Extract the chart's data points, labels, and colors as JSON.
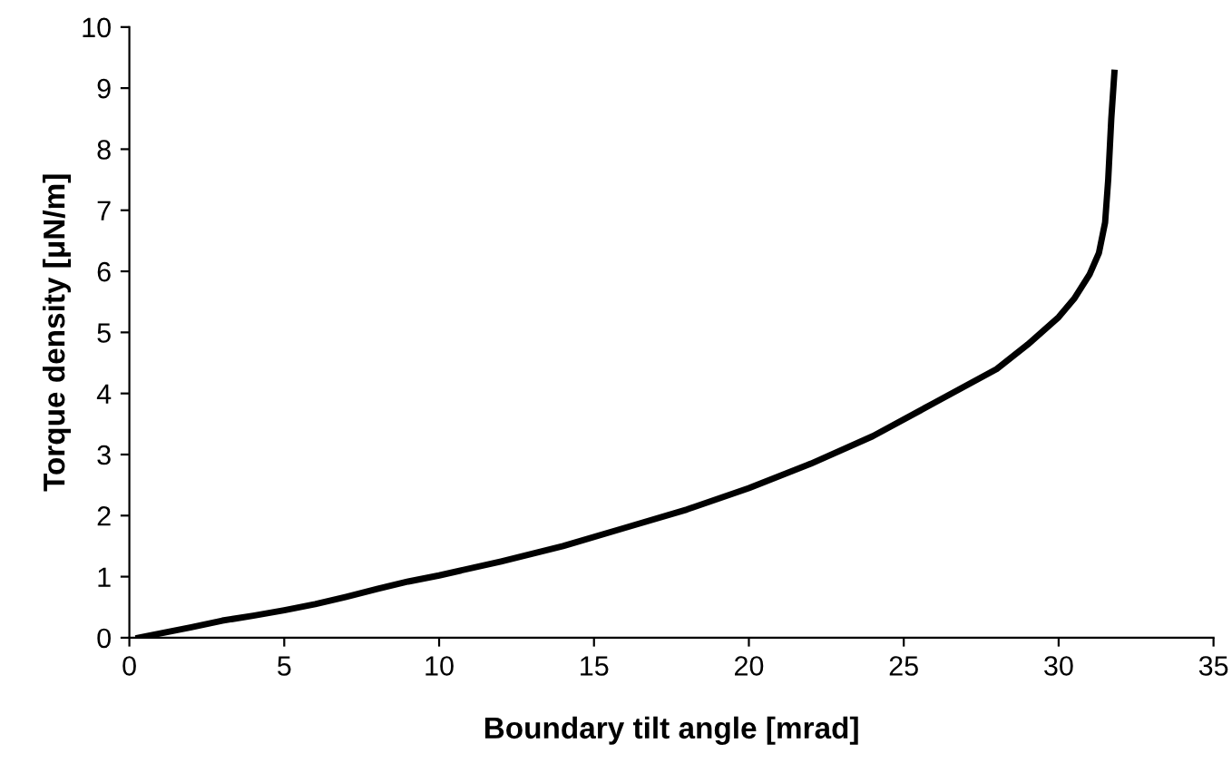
{
  "chart_data": {
    "type": "line",
    "xlabel": "Boundary tilt angle [mrad]",
    "ylabel": "Torque density [μN/m]",
    "series": [
      {
        "color": "#000000",
        "x": [
          0.3,
          1,
          2,
          3,
          4,
          5,
          6,
          7,
          8,
          9,
          10,
          12,
          14,
          16,
          18,
          20,
          22,
          24,
          26,
          28,
          29,
          30,
          30.5,
          31,
          31.3,
          31.5,
          31.6,
          31.7,
          31.8
        ],
        "values": [
          0,
          0.07,
          0.17,
          0.28,
          0.36,
          0.45,
          0.55,
          0.67,
          0.8,
          0.92,
          1.02,
          1.25,
          1.5,
          1.8,
          2.1,
          2.45,
          2.85,
          3.3,
          3.85,
          4.4,
          4.8,
          5.25,
          5.55,
          5.95,
          6.3,
          6.8,
          7.5,
          8.5,
          9.25
        ]
      }
    ],
    "xlim": [
      0,
      35
    ],
    "xticks": [
      0,
      5,
      10,
      15,
      20,
      25,
      30,
      35
    ],
    "ylim": [
      0,
      10
    ],
    "yticks": [
      0,
      1,
      2,
      3,
      4,
      5,
      6,
      7,
      8,
      9,
      10
    ],
    "grid": false,
    "legend": false,
    "marker": "none",
    "line_style": "solid"
  }
}
